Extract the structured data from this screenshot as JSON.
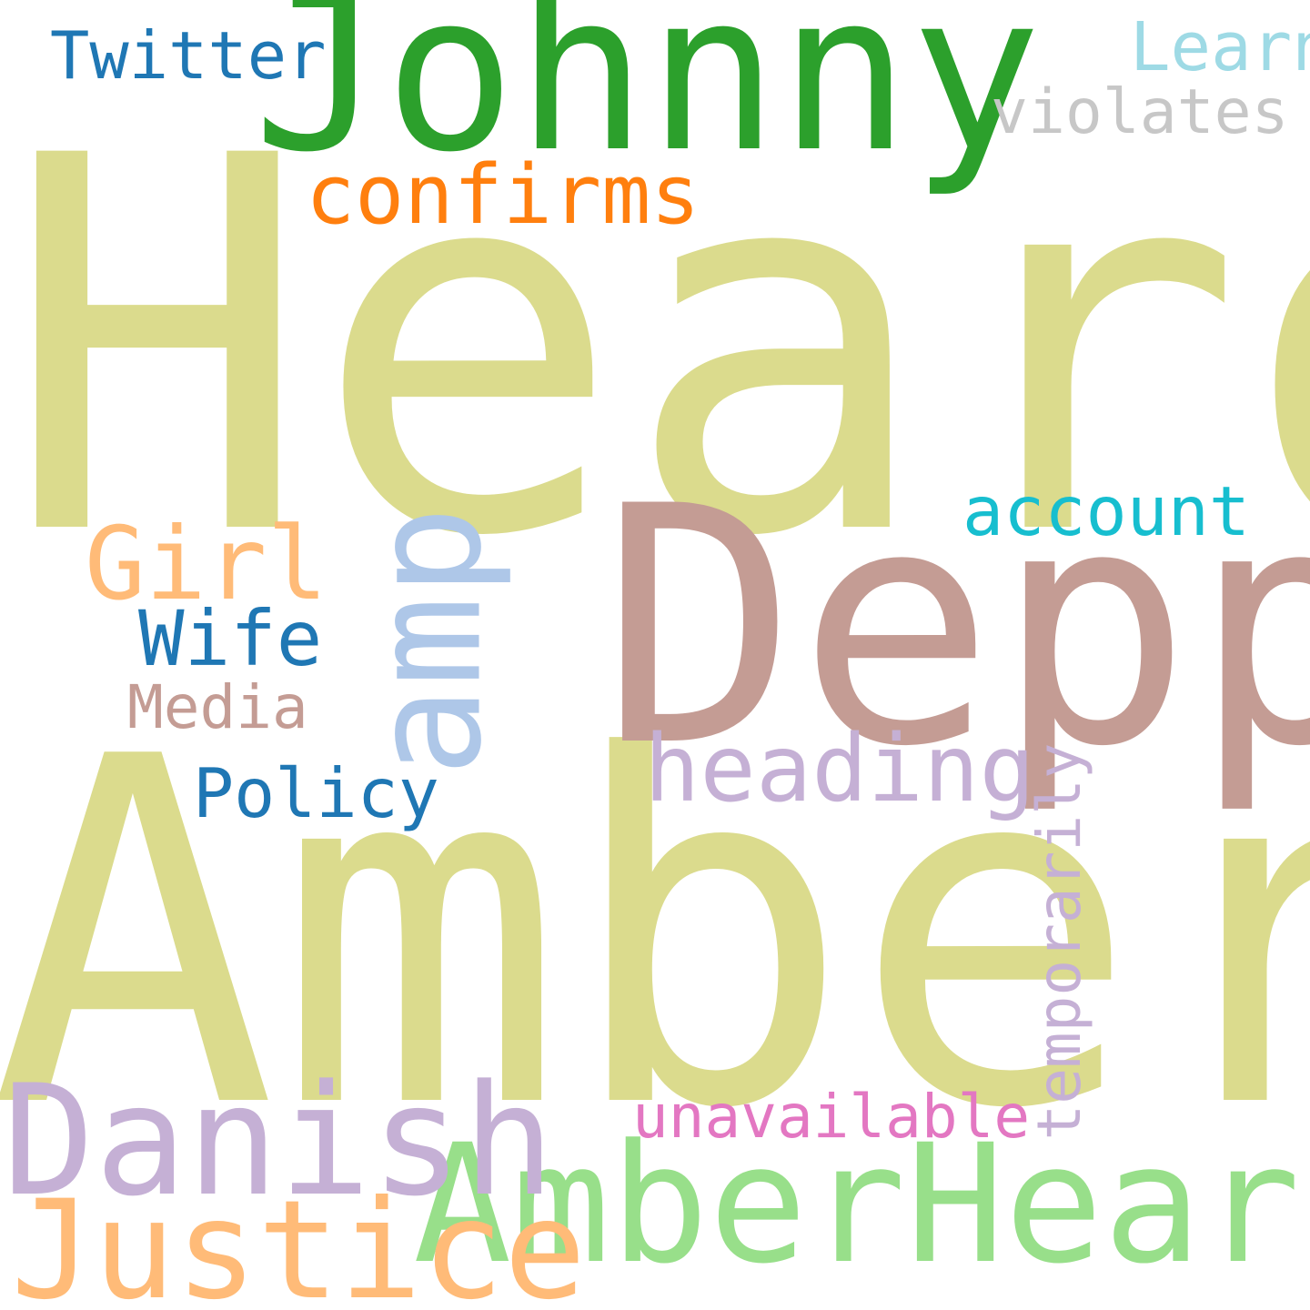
{
  "wordcloud": {
    "words": [
      {
        "id": "heard",
        "text": "Heard",
        "color": "#dbdb8d",
        "orientation": "horizontal"
      },
      {
        "id": "amber",
        "text": "Amber",
        "color": "#dbdb8d",
        "orientation": "horizontal"
      },
      {
        "id": "johnny",
        "text": "Johnny",
        "color": "#2ca02c",
        "orientation": "horizontal"
      },
      {
        "id": "depp",
        "text": "Depp",
        "color": "#c49c94",
        "orientation": "horizontal"
      },
      {
        "id": "amberheard",
        "text": "AmberHeard",
        "color": "#98df8a",
        "orientation": "horizontal"
      },
      {
        "id": "danish",
        "text": "Danish",
        "color": "#c5b0d5",
        "orientation": "horizontal"
      },
      {
        "id": "justice",
        "text": "Justice",
        "color": "#ffbb78",
        "orientation": "horizontal"
      },
      {
        "id": "amp",
        "text": "amp",
        "color": "#aec7e8",
        "orientation": "vertical"
      },
      {
        "id": "confirms",
        "text": "confirms",
        "color": "#ff7f0e",
        "orientation": "horizontal"
      },
      {
        "id": "heading",
        "text": "heading",
        "color": "#c5b0d5",
        "orientation": "horizontal"
      },
      {
        "id": "girl",
        "text": "Girl",
        "color": "#ffbb78",
        "orientation": "horizontal"
      },
      {
        "id": "twitter",
        "text": "Twitter",
        "color": "#1f77b4",
        "orientation": "horizontal"
      },
      {
        "id": "learn",
        "text": "Learn",
        "color": "#9edae5",
        "orientation": "horizontal"
      },
      {
        "id": "violates",
        "text": "violates",
        "color": "#c7c7c7",
        "orientation": "horizontal"
      },
      {
        "id": "account",
        "text": "account",
        "color": "#17becf",
        "orientation": "horizontal"
      },
      {
        "id": "wife",
        "text": "Wife",
        "color": "#1f77b4",
        "orientation": "horizontal"
      },
      {
        "id": "media",
        "text": "Media",
        "color": "#c49c94",
        "orientation": "horizontal"
      },
      {
        "id": "policy",
        "text": "Policy",
        "color": "#1f77b4",
        "orientation": "horizontal"
      },
      {
        "id": "temporarily",
        "text": "temporarily",
        "color": "#c5b0d5",
        "orientation": "vertical"
      },
      {
        "id": "unavailable",
        "text": "unavailable",
        "color": "#e377c2",
        "orientation": "horizontal"
      }
    ]
  }
}
